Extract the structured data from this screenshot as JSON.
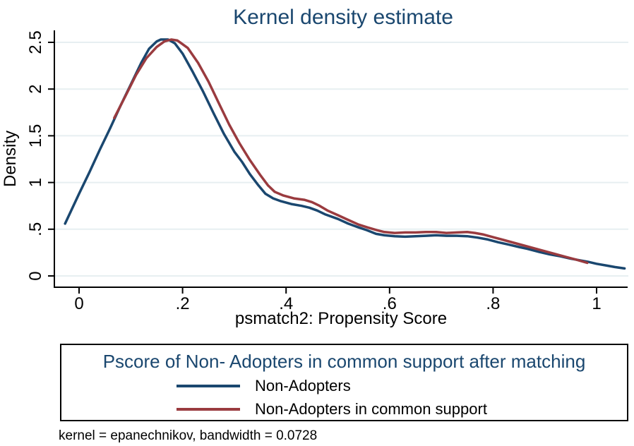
{
  "chart": {
    "note": "kernel = epanechnikov, bandwidth = 0.0728"
  },
  "legend": {
    "title": "Pscore of Non- Adopters in common support after matching",
    "entries": [
      {
        "label": "Non-Adopters",
        "color": "#1a476f"
      },
      {
        "label": "Non-Adopters in common support",
        "color": "#9a3b3f"
      }
    ]
  },
  "chart_data": {
    "type": "line",
    "title": "Kernel density estimate",
    "xlabel": "psmatch2: Propensity Score",
    "ylabel": "Density",
    "xlim": [
      -0.05,
      1.07
    ],
    "ylim": [
      0,
      2.6
    ],
    "grid": true,
    "legend_position": "bottom",
    "note": "kernel = epanechnikov, bandwidth = 0.0728",
    "x_ticks": [
      {
        "v": 0.0,
        "label": "0"
      },
      {
        "v": 0.2,
        "label": ".2"
      },
      {
        "v": 0.4,
        "label": ".4"
      },
      {
        "v": 0.6,
        "label": ".6"
      },
      {
        "v": 0.8,
        "label": ".8"
      },
      {
        "v": 1.0,
        "label": "1"
      }
    ],
    "y_ticks": [
      {
        "v": 0.0,
        "label": "0"
      },
      {
        "v": 0.5,
        "label": ".5"
      },
      {
        "v": 1.0,
        "label": "1"
      },
      {
        "v": 1.5,
        "label": "1.5"
      },
      {
        "v": 2.0,
        "label": "2"
      },
      {
        "v": 2.5,
        "label": "2.5"
      }
    ],
    "colors": {
      "title": "#1a476f",
      "grid": "#e7eff1",
      "axis": "#000000"
    },
    "series": [
      {
        "name": "Non-Adopters",
        "color": "#1a476f",
        "points": [
          [
            -0.027,
            0.56
          ],
          [
            0.0,
            0.88
          ],
          [
            0.02,
            1.11
          ],
          [
            0.04,
            1.35
          ],
          [
            0.06,
            1.58
          ],
          [
            0.08,
            1.82
          ],
          [
            0.1,
            2.05
          ],
          [
            0.12,
            2.28
          ],
          [
            0.135,
            2.43
          ],
          [
            0.15,
            2.51
          ],
          [
            0.158,
            2.53
          ],
          [
            0.172,
            2.53
          ],
          [
            0.185,
            2.49
          ],
          [
            0.2,
            2.38
          ],
          [
            0.22,
            2.18
          ],
          [
            0.24,
            1.97
          ],
          [
            0.26,
            1.74
          ],
          [
            0.28,
            1.52
          ],
          [
            0.3,
            1.33
          ],
          [
            0.315,
            1.22
          ],
          [
            0.33,
            1.09
          ],
          [
            0.345,
            0.98
          ],
          [
            0.36,
            0.88
          ],
          [
            0.375,
            0.83
          ],
          [
            0.39,
            0.8
          ],
          [
            0.41,
            0.77
          ],
          [
            0.43,
            0.75
          ],
          [
            0.445,
            0.73
          ],
          [
            0.46,
            0.7
          ],
          [
            0.475,
            0.66
          ],
          [
            0.5,
            0.61
          ],
          [
            0.52,
            0.56
          ],
          [
            0.54,
            0.52
          ],
          [
            0.556,
            0.49
          ],
          [
            0.574,
            0.45
          ],
          [
            0.59,
            0.435
          ],
          [
            0.61,
            0.425
          ],
          [
            0.63,
            0.42
          ],
          [
            0.65,
            0.425
          ],
          [
            0.67,
            0.43
          ],
          [
            0.69,
            0.435
          ],
          [
            0.71,
            0.43
          ],
          [
            0.73,
            0.43
          ],
          [
            0.75,
            0.425
          ],
          [
            0.77,
            0.41
          ],
          [
            0.79,
            0.39
          ],
          [
            0.81,
            0.36
          ],
          [
            0.83,
            0.335
          ],
          [
            0.85,
            0.31
          ],
          [
            0.866,
            0.29
          ],
          [
            0.89,
            0.255
          ],
          [
            0.91,
            0.23
          ],
          [
            0.93,
            0.21
          ],
          [
            0.95,
            0.185
          ],
          [
            0.97,
            0.165
          ],
          [
            0.984,
            0.15
          ],
          [
            1.0,
            0.13
          ],
          [
            1.02,
            0.11
          ],
          [
            1.035,
            0.095
          ],
          [
            1.054,
            0.08
          ]
        ]
      },
      {
        "name": "Non-Adopters in common support",
        "color": "#9a3b3f",
        "points": [
          [
            0.068,
            1.69
          ],
          [
            0.09,
            1.93
          ],
          [
            0.11,
            2.15
          ],
          [
            0.13,
            2.33
          ],
          [
            0.15,
            2.45
          ],
          [
            0.165,
            2.51
          ],
          [
            0.178,
            2.53
          ],
          [
            0.19,
            2.52
          ],
          [
            0.21,
            2.44
          ],
          [
            0.23,
            2.28
          ],
          [
            0.25,
            2.08
          ],
          [
            0.27,
            1.85
          ],
          [
            0.29,
            1.62
          ],
          [
            0.31,
            1.42
          ],
          [
            0.33,
            1.24
          ],
          [
            0.35,
            1.08
          ],
          [
            0.365,
            0.97
          ],
          [
            0.378,
            0.9
          ],
          [
            0.395,
            0.86
          ],
          [
            0.415,
            0.83
          ],
          [
            0.435,
            0.815
          ],
          [
            0.45,
            0.79
          ],
          [
            0.465,
            0.75
          ],
          [
            0.48,
            0.7
          ],
          [
            0.5,
            0.65
          ],
          [
            0.52,
            0.6
          ],
          [
            0.54,
            0.55
          ],
          [
            0.557,
            0.52
          ],
          [
            0.575,
            0.49
          ],
          [
            0.59,
            0.47
          ],
          [
            0.61,
            0.46
          ],
          [
            0.63,
            0.465
          ],
          [
            0.65,
            0.465
          ],
          [
            0.67,
            0.47
          ],
          [
            0.69,
            0.47
          ],
          [
            0.71,
            0.46
          ],
          [
            0.73,
            0.465
          ],
          [
            0.75,
            0.47
          ],
          [
            0.765,
            0.46
          ],
          [
            0.78,
            0.445
          ],
          [
            0.8,
            0.415
          ],
          [
            0.82,
            0.385
          ],
          [
            0.84,
            0.355
          ],
          [
            0.86,
            0.325
          ],
          [
            0.88,
            0.295
          ],
          [
            0.9,
            0.265
          ],
          [
            0.92,
            0.235
          ],
          [
            0.94,
            0.205
          ],
          [
            0.96,
            0.175
          ],
          [
            0.982,
            0.14
          ]
        ]
      }
    ]
  }
}
